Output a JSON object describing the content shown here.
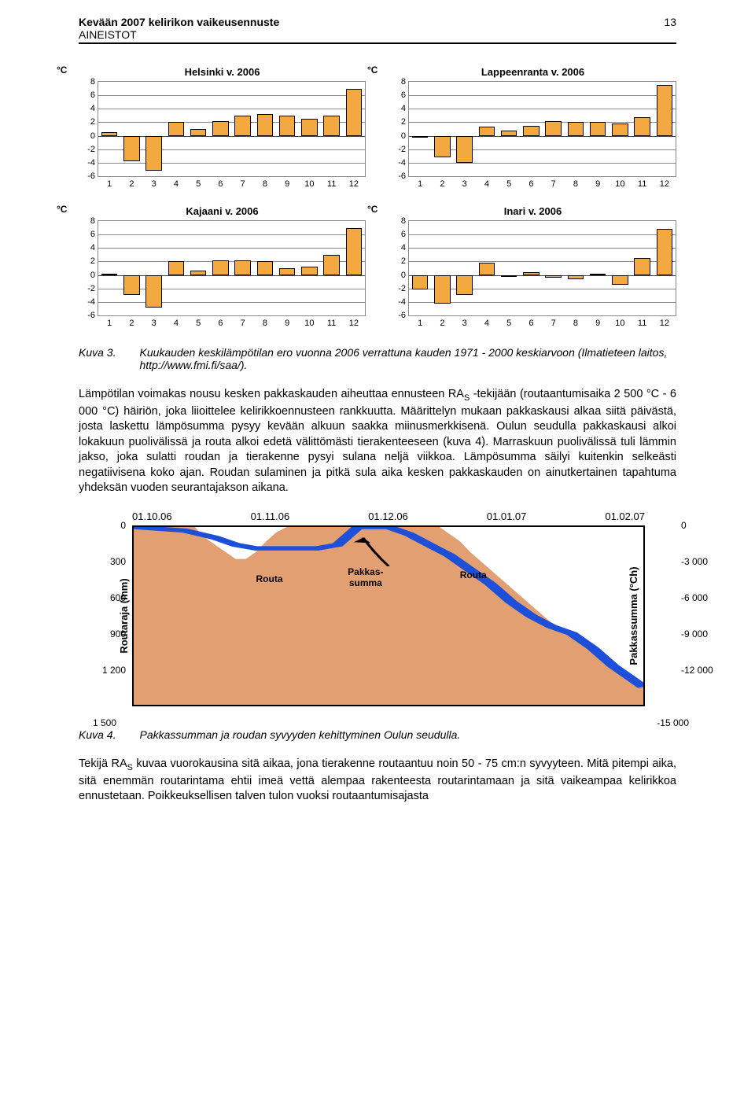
{
  "header": {
    "title": "Kevään 2007 kelirikon vaikeusennuste",
    "subtitle": "AINEISTOT",
    "page_num": "13"
  },
  "chart_common": {
    "y_unit": "°C",
    "y_ticks": [
      8,
      6,
      4,
      2,
      0,
      -2,
      -4,
      -6
    ],
    "x_ticks": [
      "1",
      "2",
      "3",
      "4",
      "5",
      "6",
      "7",
      "8",
      "9",
      "10",
      "11",
      "12"
    ],
    "bar_color": "#f4a840",
    "bar_border": "#000000",
    "grid_color": "#888888",
    "background": "#ffffff"
  },
  "charts": [
    {
      "title": "Helsinki v. 2006",
      "values": [
        0.5,
        -3.8,
        -5.2,
        2.0,
        1.0,
        2.2,
        3.0,
        3.2,
        3.0,
        2.5,
        3.0,
        7.0
      ]
    },
    {
      "title": "Lappeenranta v. 2006",
      "values": [
        0.0,
        -3.2,
        -4.0,
        1.4,
        0.8,
        1.5,
        2.2,
        2.0,
        2.0,
        1.8,
        2.8,
        7.5
      ]
    },
    {
      "title": "Kajaani v. 2006",
      "values": [
        0.2,
        -3.0,
        -4.8,
        2.0,
        0.6,
        2.2,
        2.2,
        2.0,
        1.0,
        1.2,
        3.0,
        7.0
      ]
    },
    {
      "title": "Inari v. 2006",
      "values": [
        -2.2,
        -4.2,
        -3.0,
        1.8,
        -0.2,
        0.4,
        -0.4,
        -0.6,
        0.2,
        -1.5,
        2.5,
        6.8
      ]
    }
  ],
  "caption3": {
    "label": "Kuva 3.",
    "text": "Kuukauden keskilämpötilan ero vuonna 2006 verrattuna kauden 1971 - 2000 keskiarvoon (Ilmatieteen laitos, http://www.fmi.fi/saa/)."
  },
  "body1": "Lämpötilan voimakas nousu kesken pakkaskauden aiheuttaa ennusteen RA",
  "body1_sub": "S",
  "body1_cont": " -tekijään (routaantumisaika 2 500 °C - 6 000 °C) häiriön, joka liioittelee kelirikkoennusteen rankkuutta. Määrittelyn mukaan pakkaskausi alkaa siitä päivästä, josta laskettu lämpösumma pysyy kevään alkuun saakka miinusmerkkisenä. Oulun seudulla pakkaskausi alkoi lokakuun puolivälissä ja routa alkoi edetä välittömästi tierakenteeseen (kuva 4). Marraskuun puolivälissä tuli lämmin jakso, joka sulatti roudan ja tierakenne pysyi sulana neljä viikkoa. Lämpösumma säilyi kuitenkin selkeästi negatiivisena koko ajan. Roudan sulaminen ja pitkä sula aika kesken pakkaskauden on ainutkertainen tapahtuma yhdeksän vuoden seurantajakson aikana.",
  "frost": {
    "x_labels": [
      "01.10.06",
      "01.11.06",
      "01.12.06",
      "01.01.07",
      "01.02.07"
    ],
    "left_unit": "Routaraja (mm)",
    "right_unit": "Pakkassumma (°Ch)",
    "left_ticks": [
      0,
      300,
      600,
      900,
      1200,
      1500
    ],
    "right_ticks": [
      0,
      -3000,
      -6000,
      -9000,
      -12000,
      -15000
    ],
    "right_tick_labels": [
      "0",
      "-3 000",
      "-6 000",
      "-9 000",
      "-12 000",
      "-15 000"
    ],
    "left_tick_labels": [
      "0",
      "300",
      "600",
      "900",
      "1 200",
      "1 500"
    ],
    "colors": {
      "routa_fill": "#e2a072",
      "blue_line": "#1e4fd8",
      "border": "#000000",
      "bg": "#ffffff"
    },
    "annotations": {
      "routa1": "Routa",
      "routa2": "Routa",
      "pakkassumma": "Pakkas-\nsumma"
    }
  },
  "caption4": {
    "label": "Kuva 4.",
    "text": "Pakkassumman ja roudan syvyyden kehittyminen Oulun seudulla."
  },
  "body2a": "Tekijä RA",
  "body2_sub": "S",
  "body2b": " kuvaa vuorokausina sitä aikaa, jona tierakenne routaantuu noin 50 - 75 cm:n syvyyteen. Mitä pitempi aika, sitä enemmän routarintama ehtii imeä vettä alempaa rakenteesta routarintamaan ja sitä vaikeampaa kelirikkoa ennustetaan. Poikkeuksellisen talven tulon vuoksi routaantumisajasta"
}
